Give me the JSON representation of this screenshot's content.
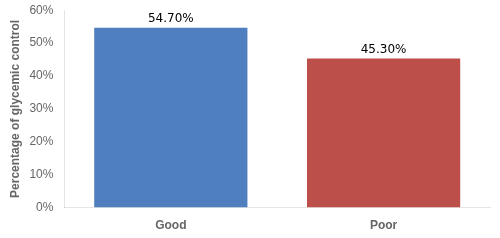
{
  "chart_data": {
    "type": "bar",
    "categories": [
      "Good",
      "Poor"
    ],
    "values": [
      54.7,
      45.3
    ],
    "value_labels": [
      "54.70%",
      "45.30%"
    ],
    "colors": [
      "#4f7fbe",
      "#bc4f4a"
    ],
    "ylabel": "Percentage of glycemic control",
    "ylim": [
      0,
      60
    ],
    "yticks": [
      {
        "value": 0,
        "label": "0%"
      },
      {
        "value": 10,
        "label": "10%"
      },
      {
        "value": 20,
        "label": "20%"
      },
      {
        "value": 30,
        "label": "30%"
      },
      {
        "value": 40,
        "label": "40%"
      },
      {
        "value": 50,
        "label": "50%"
      },
      {
        "value": 60,
        "label": "60%"
      }
    ],
    "grid": false,
    "data_labels": true
  }
}
